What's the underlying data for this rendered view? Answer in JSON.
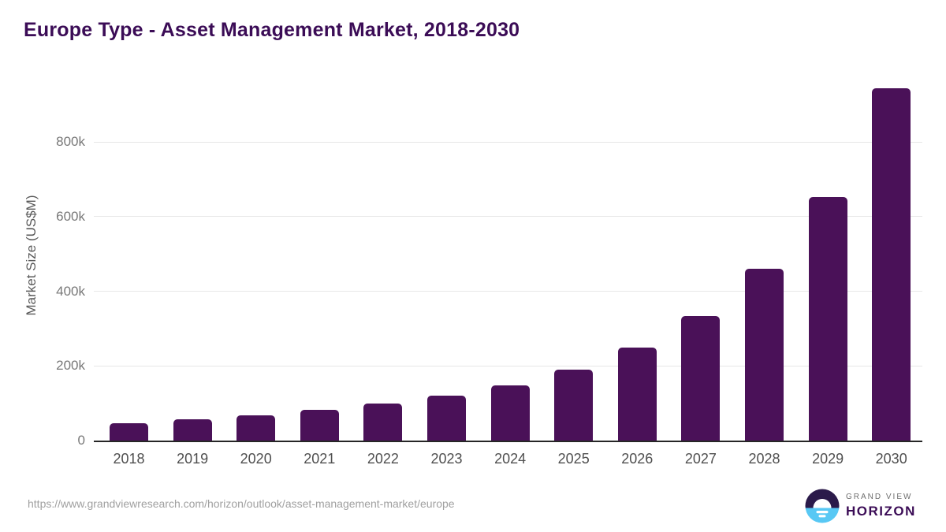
{
  "page": {
    "title": "Europe Type - Asset Management Market, 2018-2030",
    "source_url": "https://www.grandviewresearch.com/horizon/outlook/asset-management-market/europe"
  },
  "logo": {
    "line1": "GRAND VIEW",
    "line2": "HORIZON",
    "icon": "horizon-sunrise-circle"
  },
  "colors": {
    "bar": "#4a1158",
    "title": "#3b0c56",
    "gridline": "#e7e7e7",
    "axis_line": "#262626",
    "y_tick_text": "#787878",
    "x_tick_text": "#4f4f4f",
    "url_text": "#a0a0a0",
    "logo_top_half": "#2b1a4a",
    "logo_bottom_half": "#58c8f4"
  },
  "chart_data": {
    "type": "bar",
    "title": "Europe Type - Asset Management Market, 2018-2030",
    "ylabel": "Market Size (US$M)",
    "xlabel": "",
    "unit": "US$M",
    "categories": [
      "2018",
      "2019",
      "2020",
      "2021",
      "2022",
      "2023",
      "2024",
      "2025",
      "2026",
      "2027",
      "2028",
      "2029",
      "2030"
    ],
    "values": [
      46000,
      57000,
      68000,
      82000,
      99000,
      120000,
      148000,
      190000,
      249000,
      333000,
      460000,
      652000,
      943000
    ],
    "yticks": [
      {
        "value": 0,
        "label": "0"
      },
      {
        "value": 200000,
        "label": "200k"
      },
      {
        "value": 400000,
        "label": "400k"
      },
      {
        "value": 600000,
        "label": "600k"
      },
      {
        "value": 800000,
        "label": "800k"
      }
    ],
    "ylim": [
      0,
      960000
    ],
    "grid": true,
    "legend": false,
    "bar_color": "#4a1158"
  }
}
